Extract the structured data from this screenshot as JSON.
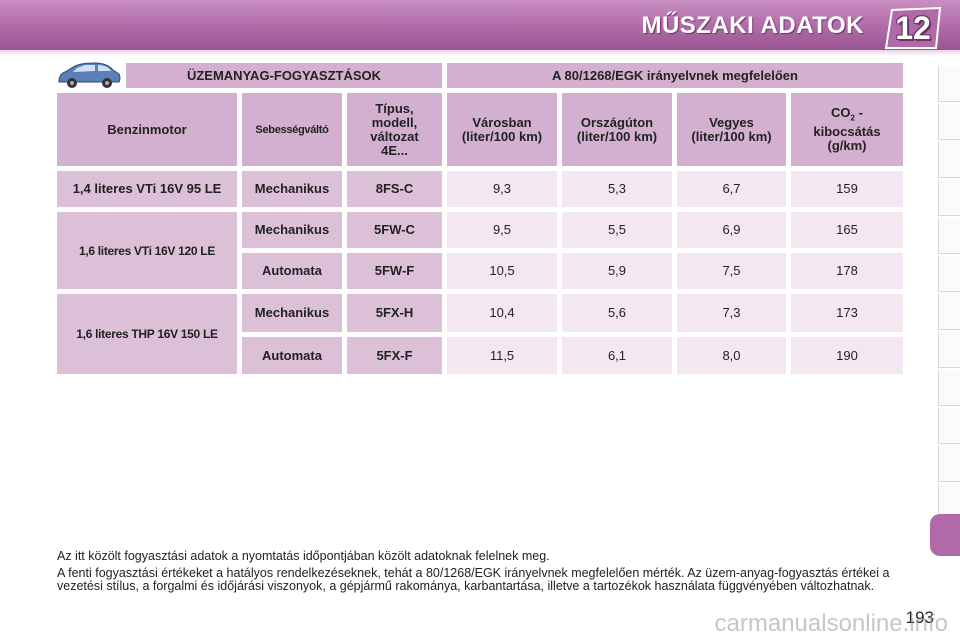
{
  "header": {
    "title": "MŰSZAKI ADATOK",
    "chapter_number": "12"
  },
  "table": {
    "group_headers": {
      "left": "ÜZEMANYAG-FOGYASZTÁSOK",
      "right": "A 80/1268/EGK irányelvnek megfelelően"
    },
    "column_headers": {
      "engine": "Benzinmotor",
      "gearbox": "Sebességváltó",
      "type_line1": "Típus,",
      "type_line2": "modell,",
      "type_line3": "változat",
      "type_line4": "4E...",
      "urban_line1": "Városban",
      "urban_line2": "(liter/100 km)",
      "extra_line1": "Országúton",
      "extra_line2": "(liter/100 km)",
      "combined_line1": "Vegyes",
      "combined_line2": "(liter/100 km)",
      "co2_prefix": "CO",
      "co2_sub": "2",
      "co2_suffix": " -",
      "co2_line2": "kibocsátás",
      "co2_line3": "(g/km)"
    },
    "engines": [
      {
        "name": "1,4 literes VTi 16V 95 LE"
      },
      {
        "name": "1,6 literes VTi 16V 120 LE"
      },
      {
        "name": "1,6 literes THP 16V 150 LE"
      }
    ],
    "rows": [
      {
        "gearbox": "Mechanikus",
        "type": "8FS-C",
        "urban": "9,3",
        "extra": "5,3",
        "combined": "6,7",
        "co2": "159"
      },
      {
        "gearbox": "Mechanikus",
        "type": "5FW-C",
        "urban": "9,5",
        "extra": "5,5",
        "combined": "6,9",
        "co2": "165"
      },
      {
        "gearbox": "Automata",
        "type": "5FW-F",
        "urban": "10,5",
        "extra": "5,9",
        "combined": "7,5",
        "co2": "178"
      },
      {
        "gearbox": "Mechanikus",
        "type": "5FX-H",
        "urban": "10,4",
        "extra": "5,6",
        "combined": "7,3",
        "co2": "173"
      },
      {
        "gearbox": "Automata",
        "type": "5FX-F",
        "urban": "11,5",
        "extra": "6,1",
        "combined": "8,0",
        "co2": "190"
      }
    ]
  },
  "footer": {
    "note1": "Az itt közölt fogyasztási adatok a nyomtatás időpontjában közölt adatoknak felelnek meg.",
    "note2": "A fenti fogyasztási értékeket a hatályos rendelkezéseknek, tehát a 80/1268/EGK irányelvnek megfelelően mérték. Az üzem-anyag-fogyasztás értékei a vezetési stílus, a forgalmi és időjárási viszonyok, a gépjármű rakománya, karbantartása, illetve a tartozékok használata függvényében változhatnak."
  },
  "page_number": "193",
  "watermark": "carmanualsonline.info",
  "colors": {
    "accent": "#b06aa8",
    "header_cell": "#d3b0cf",
    "value_cell": "#f3e8f1"
  },
  "icons": {
    "car": "car-icon",
    "chapter": "chapter-badge-icon"
  }
}
